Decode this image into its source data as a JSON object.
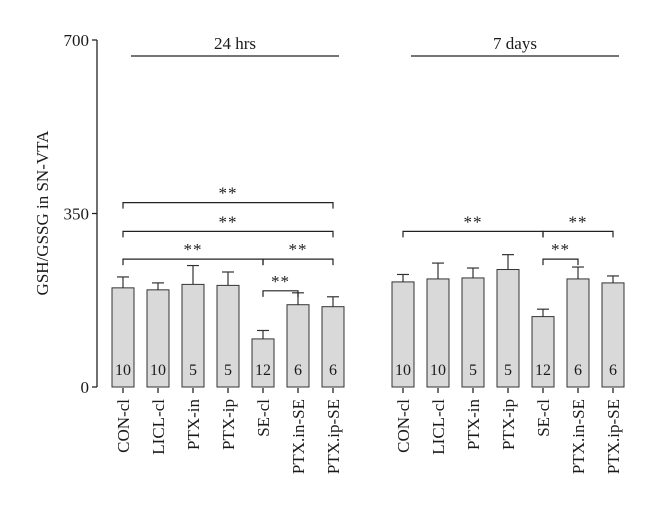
{
  "chart_data": {
    "type": "bar",
    "ylabel": "GSH/GSSG in SN-VTA",
    "ylim": [
      0,
      700
    ],
    "yticks": [
      0,
      350,
      700
    ],
    "groups": [
      {
        "title": "24 hrs",
        "categories": [
          "CON-cl",
          "LICL-cl",
          "PTX-in",
          "PTX-ip",
          "SE-cl",
          "PTX.in-SE",
          "PTX.ip-SE"
        ],
        "values": [
          200,
          196,
          207,
          205,
          97,
          166,
          162
        ],
        "errors": [
          22,
          14,
          38,
          27,
          17,
          24,
          20
        ],
        "n": [
          "10",
          "10",
          "5",
          "5",
          "12",
          "6",
          "6"
        ],
        "comparisons": [
          {
            "from": 0,
            "to": 6,
            "label": "**",
            "y": 372
          },
          {
            "from": 0,
            "to": 6,
            "label": "**",
            "y": 314
          },
          {
            "from": 0,
            "to": 4,
            "label": "**",
            "y": 258
          },
          {
            "from": 4,
            "to": 6,
            "label": "**",
            "y": 258
          },
          {
            "from": 4,
            "to": 5,
            "label": "**",
            "y": 194
          }
        ]
      },
      {
        "title": "7 days",
        "categories": [
          "CON-cl",
          "LICL-cl",
          "PTX-in",
          "PTX-ip",
          "SE-cl",
          "PTX.in-SE",
          "PTX.ip-SE"
        ],
        "values": [
          212,
          218,
          220,
          237,
          142,
          218,
          210
        ],
        "errors": [
          15,
          32,
          20,
          30,
          15,
          24,
          14
        ],
        "n": [
          "10",
          "10",
          "5",
          "5",
          "12",
          "6",
          "6"
        ],
        "comparisons": [
          {
            "from": 0,
            "to": 4,
            "label": "**",
            "y": 314
          },
          {
            "from": 4,
            "to": 6,
            "label": "**",
            "y": 314
          },
          {
            "from": 4,
            "to": 5,
            "label": "**",
            "y": 258
          }
        ]
      }
    ]
  }
}
